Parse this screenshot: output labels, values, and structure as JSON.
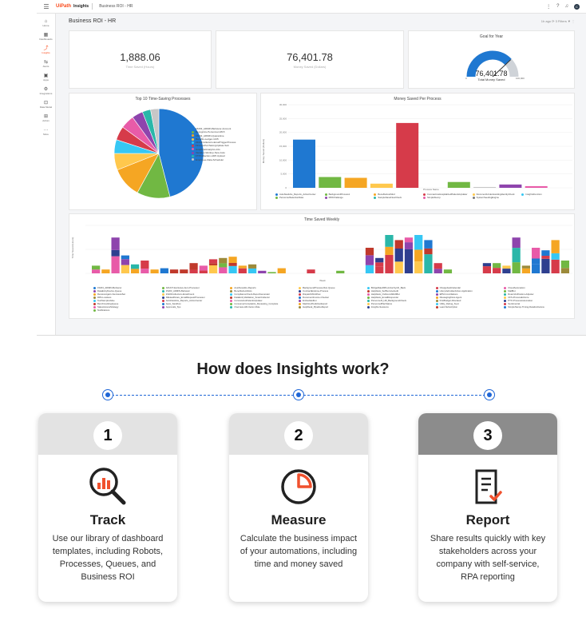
{
  "app": {
    "logo": "UiPath",
    "product": "Insights",
    "breadcrumb": "Business ROI - HR",
    "avatar": "C"
  },
  "nav": [
    {
      "icon": "home-icon",
      "glyph": "⌂",
      "label": "Home"
    },
    {
      "icon": "dashboards-icon",
      "glyph": "▦",
      "label": "Dashboards"
    },
    {
      "icon": "insights-icon",
      "glyph": "⤴",
      "label": "Insights"
    },
    {
      "icon": "alerts-icon",
      "glyph": "⇆",
      "label": "Alerts"
    },
    {
      "icon": "apps-icon",
      "glyph": "▣",
      "label": "Apps"
    },
    {
      "icon": "integrations-icon",
      "glyph": "⚙",
      "label": "Integrations"
    },
    {
      "icon": "data-model-icon",
      "glyph": "⊡",
      "label": "Data Model"
    },
    {
      "icon": "admin-icon",
      "glyph": "⊞",
      "label": "Admin"
    },
    {
      "icon": "more-icon",
      "glyph": "···",
      "label": "More"
    }
  ],
  "page": {
    "title": "Business ROI - HR",
    "tools": "1h ago  ⟳  3 Filters  ▼  ⋮"
  },
  "kpis": [
    {
      "value": "1,888.06",
      "label": "Time Saved (Hours)"
    },
    {
      "value": "76,401.78",
      "label": "Money Saved (Dollars)"
    }
  ],
  "gauge": {
    "title": "Goal for Year",
    "value": "76,401.78",
    "label": "Total Money Saved",
    "min_label": "0",
    "max_label": "100,000",
    "fraction": 0.76
  },
  "pie": {
    "title": "Top 10 Time-Saving Processes",
    "legend": [
      "15203_ADMIN-Behavior-Account",
      "Recognize-Personnel-1815",
      "15203_ADMIN-Quarantine",
      "Benefits-Ledger-1135",
      "23224Collectors-EmailTriggerProcess",
      "FinancePurchasingUpdate-Sub",
      "GraphicalAnalytics-Info",
      "Vacation-Workup-New-Auto",
      "FTPCollection-ADP-Upload",
      "Employee-Data-Scheduler"
    ]
  },
  "colors": {
    "blue": "#1f78d1",
    "green": "#71b843",
    "orange": "#f5a623",
    "light_orange": "#ffc84d",
    "cyan": "#36c7f4",
    "red": "#d63b4a",
    "pink": "#e85ba8",
    "purple": "#8e44ad",
    "teal": "#2ab7a9",
    "olive": "#9c8a3a",
    "accent": "#fa4616",
    "step_blue": "#1f66d6"
  },
  "money_chart": {
    "title": "Money Saved Per Process",
    "ylabel": "Money Saved (Dollars)",
    "xlabel": "Process Name",
    "legend": [
      "AutoNewHire_Reports_ActionCenter",
      "BackgroundProcess1",
      "BenefitsAutoMod",
      "CoronavirusHospitalizedPatientsUpdater",
      "DocumentUnderstandingIdentityCheck",
      "InsightsFunction",
      "PersonnelSelectionData",
      "RPAChallenge",
      "SampleSaveFlowCheck",
      "SimpleStemp",
      "SystemSeedingEngine"
    ]
  },
  "weekly_chart": {
    "title": "Time Saved Weekly",
    "ylabel": "Time Saved (Hours)",
    "xlabel": "Week",
    "legend": [
      "15203_ADMIN-Behavior",
      "ADUCT-Exclusive-Item-Processor",
      "AutoNewHire-Reports",
      "BackgroundProcess-Run-Queue",
      "BridgeRateRPA-ActionSynth_Back",
      "ChargebackCalendar",
      "CloudAutomation",
      "DataEntryDevice-Queue",
      "15203_ADMIN-Behavior",
      "BenefitsAutoSlots",
      "ContractEndorse-Process",
      "HelpDesk_SelfServiceAudit",
      "LifecycleFolderAction-Application",
      "MailBot",
      "ReceiveAgain-InterviewsSet",
      "23224Collectors-EmailCount",
      "ComplianceCheck-ReportGenerator",
      "DispatchWorkflow",
      "HelpDesk_OutboundWebBot",
      "EPM-Conciliations",
      "RoamVerification-Adjuster",
      "RPA-Lossless",
      "DEHealthcare_EmailRequestProcessor",
      "DataEntryValidation_SmartCollector",
      "DocumentInvoice-Checker",
      "HelpDesk_EmailResponder",
      "MessagingFlow-Agent",
      "CFS-ProcessEnforce",
      "TestSampleValue",
      "AutoNewHire_Reports_ActionCenter",
      "CoronavirusPatientsUpdater",
      "Embeddedbot",
      "Personnel3_HR_BackgroundCheck",
      "FirstBudget-Allocated",
      "PTO-ProcessAutomation",
      "BenchmarkingQueue",
      "Apps_Sandbox",
      "ConsumerComplaints_Reviewing_Complete",
      "MachinePredictionExport",
      "PersonnelPlanStatus",
      "Utility_Debug_Sync",
      "Sentimental",
      "SalesAccessStrategy",
      "Approvals_Sys",
      "Overview-HR-Vector-Role",
      "HelpDesk_PipelineReport",
      "Insights-Sessions",
      "Lead-Subscription",
      "SimpleStemp-Timing-Details-Review",
      "Notifications"
    ]
  },
  "heading": "How does Insights work?",
  "steps": [
    {
      "num": "1",
      "icon": "track-magnifier-chart-icon",
      "title": "Track",
      "desc": "Use our library of dashboard templates, including Robots, Processes, Queues, and Business ROI"
    },
    {
      "num": "2",
      "icon": "measure-pie-chart-icon",
      "title": "Measure",
      "desc": "Calculate the business impact of your automations, including time and money saved"
    },
    {
      "num": "3",
      "icon": "report-document-icon",
      "title": "Report",
      "desc": "Share results quickly with key stakeholders across your company with self-service, RPA reporting"
    }
  ]
}
